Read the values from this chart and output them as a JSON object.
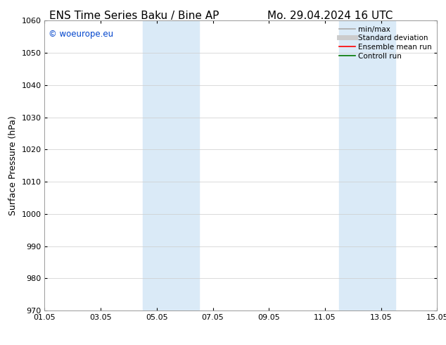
{
  "title_left": "ENS Time Series Baku / Bine AP",
  "title_right": "Mo. 29.04.2024 16 UTC",
  "ylabel": "Surface Pressure (hPa)",
  "ylim": [
    970,
    1060
  ],
  "yticks": [
    970,
    980,
    990,
    1000,
    1010,
    1020,
    1030,
    1040,
    1050,
    1060
  ],
  "xtick_labels": [
    "01.05",
    "03.05",
    "05.05",
    "07.05",
    "09.05",
    "11.05",
    "13.05",
    "15.05"
  ],
  "xtick_positions": [
    0,
    2,
    4,
    6,
    8,
    10,
    12,
    14
  ],
  "xlim": [
    0,
    14
  ],
  "shaded_regions": [
    {
      "x_start": 3.5,
      "x_end": 5.5,
      "color": "#daeaf7"
    },
    {
      "x_start": 10.5,
      "x_end": 12.5,
      "color": "#daeaf7"
    }
  ],
  "watermark_text": "© woeurope.eu",
  "watermark_color": "#0044cc",
  "legend_entries": [
    {
      "label": "min/max",
      "color": "#aaaaaa",
      "linewidth": 1.2
    },
    {
      "label": "Standard deviation",
      "color": "#cccccc",
      "linewidth": 5
    },
    {
      "label": "Ensemble mean run",
      "color": "#ff0000",
      "linewidth": 1.2
    },
    {
      "label": "Controll run",
      "color": "#007700",
      "linewidth": 1.2
    }
  ],
  "bg_color": "#ffffff",
  "grid_color": "#cccccc",
  "title_fontsize": 11,
  "axis_label_fontsize": 9,
  "tick_fontsize": 8,
  "legend_fontsize": 7.5
}
